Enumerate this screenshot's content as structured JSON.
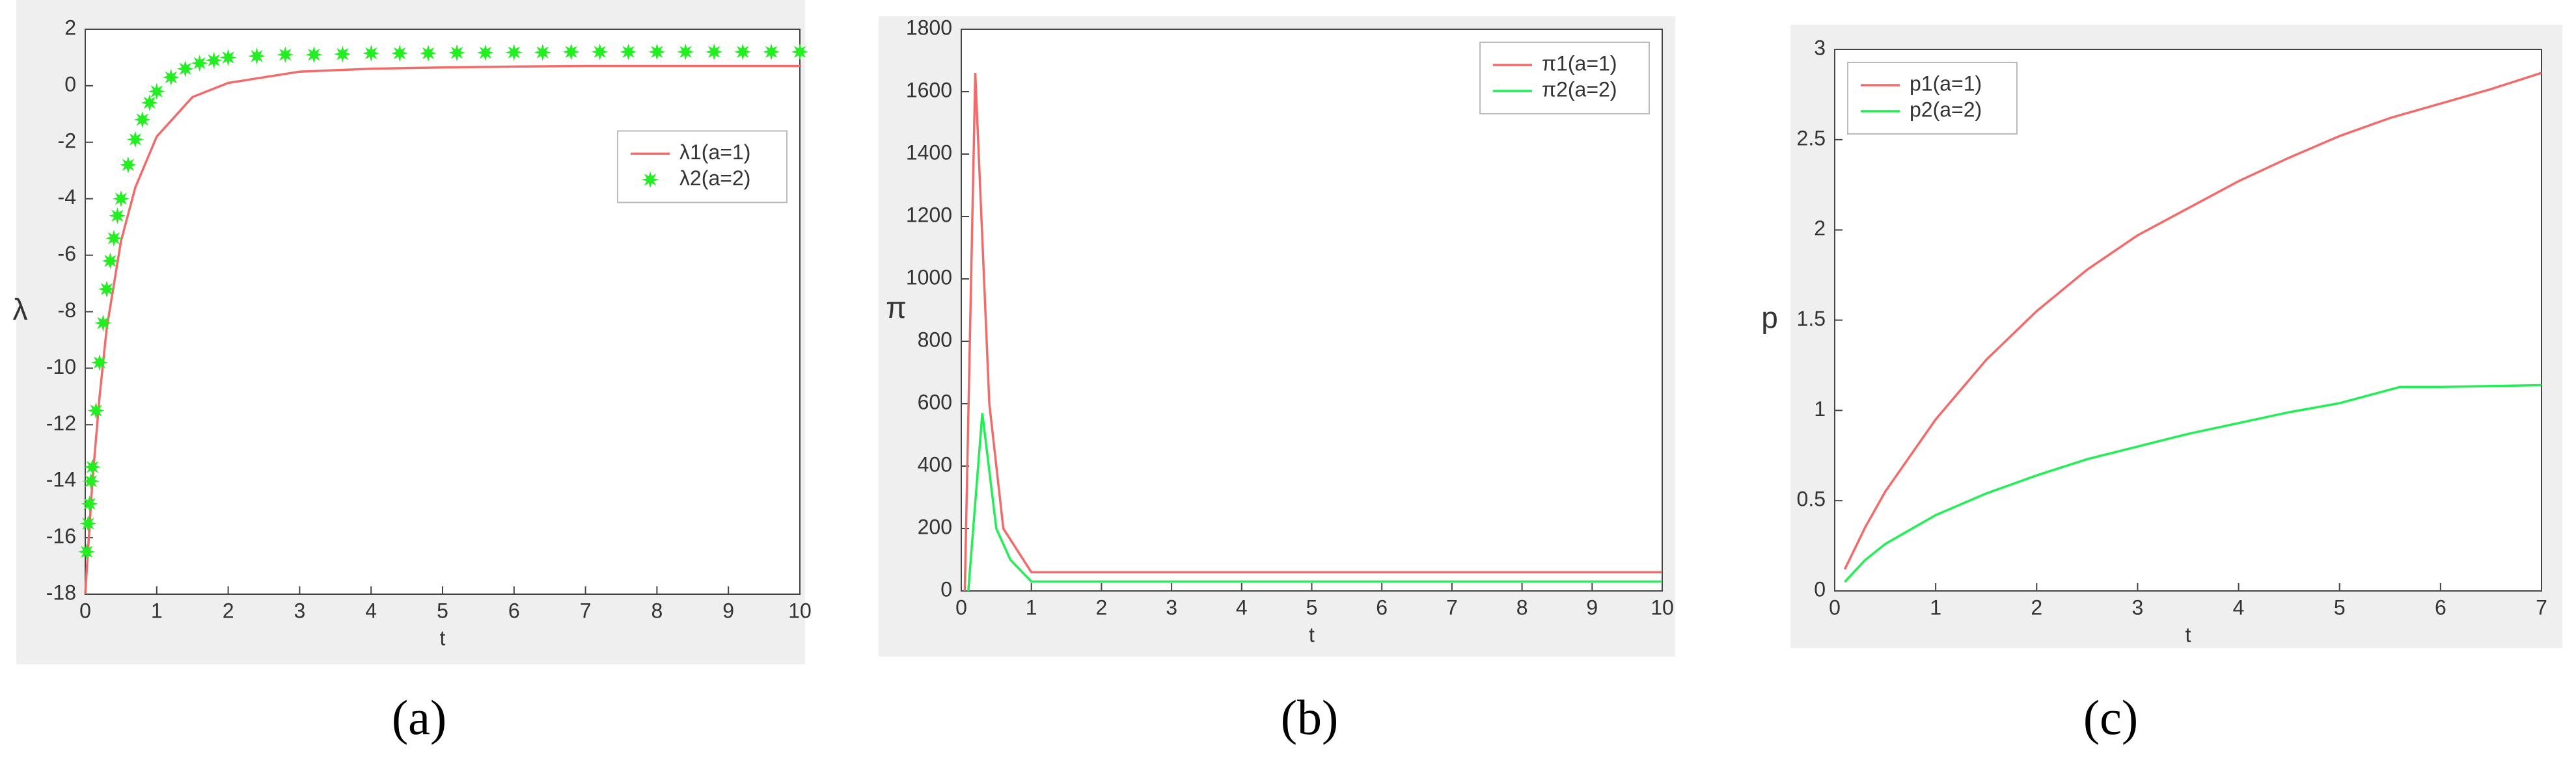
{
  "chart_data": [
    {
      "type": "line",
      "caption": "(a)",
      "xlabel": "t",
      "ylabel": "λ",
      "xlim": [
        0,
        10
      ],
      "xticks": [
        0,
        1,
        2,
        3,
        4,
        5,
        6,
        7,
        8,
        9,
        10
      ],
      "ylim": [
        -18,
        2
      ],
      "yticks": [
        -18,
        -16,
        -14,
        -12,
        -10,
        -8,
        -6,
        -4,
        -2,
        0,
        2
      ],
      "legend": "right",
      "series": [
        {
          "name": "λ1(a=1)",
          "color": "#f26b6b",
          "type": "line",
          "x": [
            0,
            0.1,
            0.2,
            0.3,
            0.5,
            0.7,
            1,
            1.5,
            2,
            3,
            4,
            5,
            6,
            7,
            8,
            9,
            10
          ],
          "values": [
            -18,
            -14,
            -11,
            -8.6,
            -5.5,
            -3.6,
            -1.8,
            -0.4,
            0.1,
            0.5,
            0.6,
            0.65,
            0.68,
            0.7,
            0.7,
            0.7,
            0.7
          ]
        },
        {
          "name": "λ2(a=2)",
          "color": "#22ee22",
          "type": "scatter",
          "x": [
            0.02,
            0.04,
            0.06,
            0.08,
            0.1,
            0.15,
            0.2,
            0.25,
            0.3,
            0.35,
            0.4,
            0.45,
            0.5,
            0.6,
            0.7,
            0.8,
            0.9,
            1.0,
            1.2,
            1.4,
            1.6,
            1.8,
            2.0,
            2.4,
            2.8,
            3.2,
            3.6,
            4.0,
            4.4,
            4.8,
            5.2,
            5.6,
            6.0,
            6.4,
            6.8,
            7.2,
            7.6,
            8.0,
            8.4,
            8.8,
            9.2,
            9.6,
            10
          ],
          "values": [
            -16.5,
            -15.5,
            -14.8,
            -14,
            -13.5,
            -11.5,
            -9.8,
            -8.4,
            -7.2,
            -6.2,
            -5.4,
            -4.6,
            -4,
            -2.8,
            -1.9,
            -1.2,
            -0.6,
            -0.2,
            0.3,
            0.6,
            0.8,
            0.9,
            1.0,
            1.05,
            1.1,
            1.1,
            1.12,
            1.15,
            1.15,
            1.15,
            1.17,
            1.17,
            1.18,
            1.18,
            1.2,
            1.2,
            1.2,
            1.2,
            1.2,
            1.2,
            1.2,
            1.2,
            1.2
          ]
        }
      ]
    },
    {
      "type": "line",
      "caption": "(b)",
      "xlabel": "t",
      "ylabel": "π",
      "xlim": [
        0,
        10
      ],
      "xticks": [
        0,
        1,
        2,
        3,
        4,
        5,
        6,
        7,
        8,
        9,
        10
      ],
      "ylim": [
        0,
        1800
      ],
      "yticks": [
        0,
        200,
        400,
        600,
        800,
        1000,
        1200,
        1400,
        1600,
        1800
      ],
      "legend": "upper right",
      "series": [
        {
          "name": "π1(a=1)",
          "color": "#f26b6b",
          "type": "line",
          "x": [
            0.05,
            0.2,
            0.4,
            0.6,
            1.0,
            1.2,
            10
          ],
          "values": [
            0,
            1660,
            600,
            200,
            60,
            60,
            60
          ]
        },
        {
          "name": "π2(a=2)",
          "color": "#22ee55",
          "type": "line",
          "x": [
            0.1,
            0.3,
            0.5,
            0.7,
            1.0,
            1.2,
            10
          ],
          "values": [
            0,
            570,
            200,
            100,
            30,
            30,
            30
          ]
        }
      ]
    },
    {
      "type": "line",
      "caption": "(c)",
      "xlabel": "t",
      "ylabel": "p",
      "xlim": [
        0,
        7
      ],
      "xticks": [
        0,
        1,
        2,
        3,
        4,
        5,
        6,
        7
      ],
      "ylim": [
        0,
        3
      ],
      "yticks": [
        0,
        0.5,
        1,
        1.5,
        2,
        2.5,
        3
      ],
      "legend": "upper left",
      "series": [
        {
          "name": "p1(a=1)",
          "color": "#f26b6b",
          "type": "line",
          "x": [
            0.1,
            0.3,
            0.5,
            1,
            1.5,
            2,
            2.5,
            3,
            3.5,
            4,
            4.5,
            5,
            5.5,
            6,
            6.5,
            7
          ],
          "values": [
            0.12,
            0.35,
            0.55,
            0.95,
            1.28,
            1.55,
            1.78,
            1.97,
            2.12,
            2.27,
            2.4,
            2.52,
            2.62,
            2.7,
            2.78,
            2.87
          ]
        },
        {
          "name": "p2(a=2)",
          "color": "#22ee55",
          "type": "line",
          "x": [
            0.1,
            0.3,
            0.5,
            1,
            1.5,
            2,
            2.5,
            3,
            3.5,
            4,
            4.5,
            5,
            5.6,
            6,
            7
          ],
          "values": [
            0.05,
            0.17,
            0.26,
            0.42,
            0.54,
            0.64,
            0.73,
            0.8,
            0.87,
            0.93,
            0.99,
            1.04,
            1.13,
            1.13,
            1.14
          ]
        }
      ]
    }
  ]
}
